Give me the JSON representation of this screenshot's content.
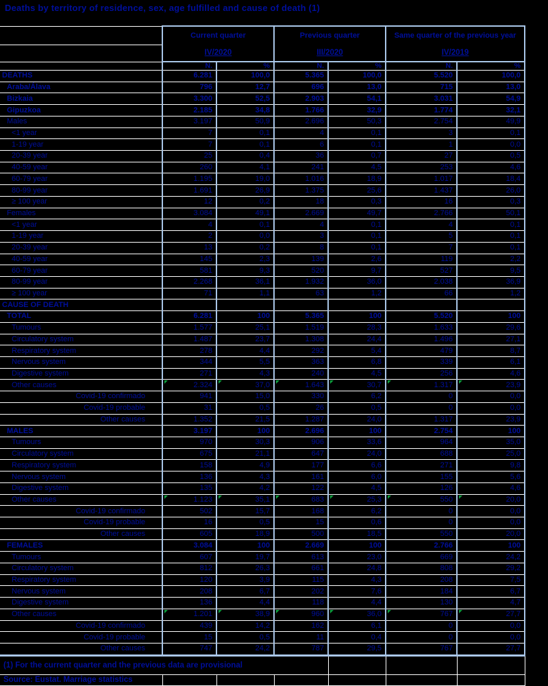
{
  "title": "Deaths by territory of residence, sex, age fulfilled and cause of death (1)",
  "colors": {
    "text_navy": "#000f9b",
    "grid_blue": "#a9c6e8",
    "grid_white": "#ffffff",
    "flag_green": "#0e9e3e",
    "background": "#000000"
  },
  "header": {
    "groups": [
      {
        "label": "Current quarter",
        "period": "IV/2020"
      },
      {
        "label": "Previous quarter",
        "period": "III/2020"
      },
      {
        "label": "Same quarter of the previous year",
        "period": "IV/2019"
      }
    ],
    "subcols": [
      "N.",
      "%"
    ]
  },
  "table": {
    "rows": [
      {
        "label": "DEATHS",
        "bold": true,
        "indent": 0,
        "align": "left",
        "flags": false,
        "values": [
          "6.281",
          "100,0",
          "5.365",
          "100,0",
          "5.520",
          "100,0"
        ]
      },
      {
        "label": "Araba/Álava",
        "bold": true,
        "indent": 1,
        "align": "left",
        "flags": false,
        "values": [
          "796",
          "12,7",
          "696",
          "13,0",
          "715",
          "13,0"
        ]
      },
      {
        "label": "Bizkaia",
        "bold": true,
        "indent": 1,
        "align": "left",
        "flags": false,
        "values": [
          "3.300",
          "52,5",
          "2.903",
          "54,1",
          "3.031",
          "54,9"
        ]
      },
      {
        "label": "Gipuzkoa",
        "bold": true,
        "indent": 1,
        "align": "left",
        "flags": false,
        "values": [
          "2.185",
          "34,8",
          "1.766",
          "32,9",
          "1.774",
          "32,1"
        ]
      },
      {
        "label": "Males",
        "bold": false,
        "indent": 1,
        "align": "left",
        "flags": false,
        "values": [
          "3.197",
          "50,9",
          "2.696",
          "50,3",
          "2.754",
          "49,9"
        ]
      },
      {
        "label": "<1 year",
        "bold": false,
        "indent": 2,
        "align": "left",
        "flags": false,
        "values": [
          "7",
          "0,1",
          "4",
          "0,1",
          "3",
          "0,1"
        ]
      },
      {
        "label": "1-19 year",
        "bold": false,
        "indent": 2,
        "align": "left",
        "flags": false,
        "values": [
          "7",
          "0,1",
          "6",
          "0,1",
          "1",
          "0,0"
        ]
      },
      {
        "label": "20-39 year",
        "bold": false,
        "indent": 2,
        "align": "left",
        "flags": false,
        "values": [
          "25",
          "0,4",
          "36",
          "0,7",
          "27",
          "0,5"
        ]
      },
      {
        "label": "40-59 year",
        "bold": false,
        "indent": 2,
        "align": "left",
        "flags": false,
        "values": [
          "260",
          "4,1",
          "241",
          "4,5",
          "253",
          "4,6"
        ]
      },
      {
        "label": "60-79 year",
        "bold": false,
        "indent": 2,
        "align": "left",
        "flags": false,
        "values": [
          "1.195",
          "19,0",
          "1.016",
          "18,9",
          "1.017",
          "18,4"
        ]
      },
      {
        "label": "80-99 year",
        "bold": false,
        "indent": 2,
        "align": "left",
        "flags": false,
        "values": [
          "1.691",
          "26,9",
          "1.375",
          "25,6",
          "1.437",
          "26,0"
        ]
      },
      {
        "label": "≥ 100 year",
        "bold": false,
        "indent": 2,
        "align": "left",
        "flags": false,
        "values": [
          "12",
          "0,2",
          "18",
          "0,3",
          "16",
          "0,3"
        ]
      },
      {
        "label": "Females",
        "bold": false,
        "indent": 1,
        "align": "left",
        "flags": false,
        "values": [
          "3.084",
          "49,1",
          "2.669",
          "49,7",
          "2.766",
          "50,1"
        ]
      },
      {
        "label": "<1 year",
        "bold": false,
        "indent": 2,
        "align": "left",
        "flags": false,
        "values": [
          "4",
          "0,1",
          "4",
          "0,1",
          "4",
          "0,1"
        ]
      },
      {
        "label": "1-19 year",
        "bold": false,
        "indent": 2,
        "align": "left",
        "flags": false,
        "values": [
          "2",
          "0,0",
          "3",
          "0,1",
          "5",
          "0,1"
        ]
      },
      {
        "label": "20-39 year",
        "bold": false,
        "indent": 2,
        "align": "left",
        "flags": false,
        "values": [
          "13",
          "0,2",
          "8",
          "0,1",
          "7",
          "0,1"
        ]
      },
      {
        "label": "40-59 year",
        "bold": false,
        "indent": 2,
        "align": "left",
        "flags": false,
        "values": [
          "145",
          "2,3",
          "139",
          "2,6",
          "119",
          "2,2"
        ]
      },
      {
        "label": "60-79 year",
        "bold": false,
        "indent": 2,
        "align": "left",
        "flags": false,
        "values": [
          "581",
          "9,3",
          "520",
          "9,7",
          "527",
          "9,5"
        ]
      },
      {
        "label": "80-99 year",
        "bold": false,
        "indent": 2,
        "align": "left",
        "flags": false,
        "values": [
          "2.268",
          "36,1",
          "1.932",
          "36,0",
          "2.038",
          "36,9"
        ]
      },
      {
        "label": "≥ 100 year",
        "bold": false,
        "indent": 2,
        "align": "left",
        "flags": false,
        "values": [
          "71",
          "1,1",
          "63",
          "1,2",
          "66",
          "1,2"
        ]
      },
      {
        "label": "CAUSE OF DEATH",
        "bold": true,
        "indent": 0,
        "align": "left",
        "flags": false,
        "values": [
          "",
          "",
          "",
          "",
          "",
          ""
        ]
      },
      {
        "label": "TOTAL",
        "bold": true,
        "indent": 1,
        "align": "left",
        "flags": false,
        "values": [
          "6.281",
          "100",
          "5.365",
          "100",
          "5.520",
          "100"
        ]
      },
      {
        "label": "Tumours",
        "bold": false,
        "indent": 2,
        "align": "left",
        "flags": false,
        "values": [
          "1.577",
          "25,1",
          "1.519",
          "28,3",
          "1.633",
          "29,6"
        ]
      },
      {
        "label": "Circulatory system",
        "bold": false,
        "indent": 2,
        "align": "left",
        "flags": false,
        "values": [
          "1.487",
          "23,7",
          "1.308",
          "24,4",
          "1.496",
          "27,1"
        ]
      },
      {
        "label": "Respiratory system",
        "bold": false,
        "indent": 2,
        "align": "left",
        "flags": false,
        "values": [
          "278",
          "4,4",
          "292",
          "5,4",
          "479",
          "8,7"
        ]
      },
      {
        "label": "Nervous system",
        "bold": false,
        "indent": 2,
        "align": "left",
        "flags": false,
        "values": [
          "344",
          "5,5",
          "363",
          "6,8",
          "339",
          "6,1"
        ]
      },
      {
        "label": "Digestive system",
        "bold": false,
        "indent": 2,
        "align": "left",
        "flags": false,
        "values": [
          "271",
          "4,3",
          "240",
          "4,5",
          "256",
          "4,6"
        ]
      },
      {
        "label": "Other causes",
        "bold": false,
        "indent": 2,
        "align": "left",
        "flags": true,
        "values": [
          "2.324",
          "37,0",
          "1.643",
          "30,7",
          "1.317",
          "23,9"
        ]
      },
      {
        "label": "Covid-19 confirmado",
        "bold": false,
        "indent": 0,
        "align": "right",
        "flags": false,
        "values": [
          "941",
          "15,0",
          "330",
          "6,2",
          "0",
          "0,0"
        ]
      },
      {
        "label": "Covid-19 probable",
        "bold": false,
        "indent": 0,
        "align": "right",
        "flags": false,
        "values": [
          "31",
          "0,5",
          "26",
          "0,5",
          "0",
          "0,0"
        ]
      },
      {
        "label": "Other causes",
        "bold": false,
        "indent": 0,
        "align": "right",
        "flags": false,
        "values": [
          "1.352",
          "21,5",
          "1.287",
          "24,0",
          "1.317",
          "23,9"
        ]
      },
      {
        "label": "MALES",
        "bold": true,
        "indent": 1,
        "align": "left",
        "flags": false,
        "values": [
          "3.197",
          "100",
          "2.696",
          "100",
          "2.754",
          "100"
        ]
      },
      {
        "label": "Tumours",
        "bold": false,
        "indent": 2,
        "align": "left",
        "flags": false,
        "values": [
          "970",
          "30,3",
          "906",
          "33,6",
          "964",
          "35,0"
        ]
      },
      {
        "label": "Circulatory system",
        "bold": false,
        "indent": 2,
        "align": "left",
        "flags": false,
        "values": [
          "675",
          "21,1",
          "647",
          "24,0",
          "688",
          "25,0"
        ]
      },
      {
        "label": "Respiratory system",
        "bold": false,
        "indent": 2,
        "align": "left",
        "flags": false,
        "values": [
          "158",
          "4,9",
          "177",
          "6,6",
          "271",
          "9,8"
        ]
      },
      {
        "label": "Nervous system",
        "bold": false,
        "indent": 2,
        "align": "left",
        "flags": false,
        "values": [
          "136",
          "4,3",
          "161",
          "6,0",
          "155",
          "5,6"
        ]
      },
      {
        "label": "Digestive system",
        "bold": false,
        "indent": 2,
        "align": "left",
        "flags": false,
        "values": [
          "135",
          "4,2",
          "122",
          "4,5",
          "126",
          "4,6"
        ]
      },
      {
        "label": "Other causes",
        "bold": false,
        "indent": 2,
        "align": "left",
        "flags": true,
        "values": [
          "1.123",
          "35,1",
          "683",
          "25,3",
          "550",
          "20,0"
        ]
      },
      {
        "label": "Covid-19 confirmado",
        "bold": false,
        "indent": 0,
        "align": "right",
        "flags": false,
        "values": [
          "502",
          "15,7",
          "168",
          "6,2",
          "0",
          "0,0"
        ]
      },
      {
        "label": "Covid-19 probable",
        "bold": false,
        "indent": 0,
        "align": "right",
        "flags": false,
        "values": [
          "16",
          "0,5",
          "15",
          "0,6",
          "0",
          "0,0"
        ]
      },
      {
        "label": "Other causes",
        "bold": false,
        "indent": 0,
        "align": "right",
        "flags": false,
        "values": [
          "605",
          "18,9",
          "500",
          "18,5",
          "550",
          "20,0"
        ]
      },
      {
        "label": "FEMALES",
        "bold": true,
        "indent": 1,
        "align": "left",
        "flags": false,
        "values": [
          "3.084",
          "100",
          "2.669",
          "100",
          "2.766",
          "100"
        ]
      },
      {
        "label": "Tumours",
        "bold": false,
        "indent": 2,
        "align": "left",
        "flags": false,
        "values": [
          "607",
          "19,7",
          "613",
          "23,0",
          "669",
          "24,2"
        ]
      },
      {
        "label": "Circulatory system",
        "bold": false,
        "indent": 2,
        "align": "left",
        "flags": false,
        "values": [
          "812",
          "26,3",
          "661",
          "24,8",
          "808",
          "29,2"
        ]
      },
      {
        "label": "Respiratory system",
        "bold": false,
        "indent": 2,
        "align": "left",
        "flags": false,
        "values": [
          "120",
          "3,9",
          "115",
          "4,3",
          "208",
          "7,5"
        ]
      },
      {
        "label": "Nervous system",
        "bold": false,
        "indent": 2,
        "align": "left",
        "flags": false,
        "values": [
          "208",
          "6,7",
          "202",
          "7,6",
          "184",
          "6,7"
        ]
      },
      {
        "label": "Digestive system",
        "bold": false,
        "indent": 2,
        "align": "left",
        "flags": false,
        "values": [
          "136",
          "4,4",
          "118",
          "4,4",
          "130",
          "4,7"
        ]
      },
      {
        "label": "Other causes",
        "bold": false,
        "indent": 2,
        "align": "left",
        "flags": true,
        "values": [
          "1.201",
          "38,9",
          "960",
          "36,0",
          "767",
          "27,7"
        ]
      },
      {
        "label": "Covid-19 confirmado",
        "bold": false,
        "indent": 0,
        "align": "right",
        "flags": false,
        "values": [
          "439",
          "14,2",
          "162",
          "6,1",
          "0",
          "0,0"
        ]
      },
      {
        "label": "Covid-19 probable",
        "bold": false,
        "indent": 0,
        "align": "right",
        "flags": false,
        "values": [
          "15",
          "0,5",
          "11",
          "0,4",
          "0",
          "0,0"
        ]
      },
      {
        "label": "Other causes",
        "bold": false,
        "indent": 0,
        "align": "right",
        "flags": false,
        "values": [
          "747",
          "24,2",
          "787",
          "29,5",
          "767",
          "27,7"
        ]
      }
    ]
  },
  "footnote": "(1) For the current quarter and the previous data are provisional",
  "source": "Source: Eustat. Marriage statistics"
}
